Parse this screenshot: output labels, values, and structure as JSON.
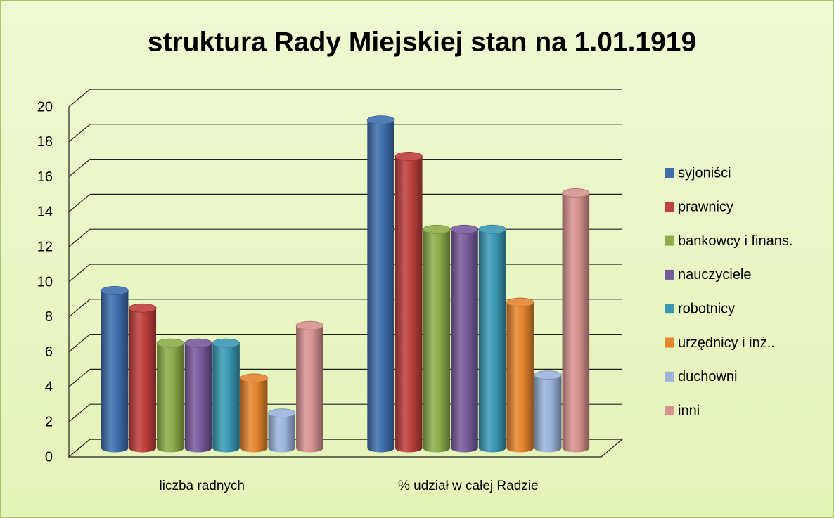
{
  "chart_data": {
    "type": "bar3d",
    "title": "struktura Rady Miejskiej stan na 1.01.1919",
    "categories": [
      "liczba radnych",
      "% udział w całej Radzie"
    ],
    "series": [
      {
        "name": "syjoniści",
        "color": "#3e6eae",
        "values": [
          9,
          18.75
        ]
      },
      {
        "name": "prawnicy",
        "color": "#be3f3b",
        "values": [
          8,
          16.67
        ]
      },
      {
        "name": "bankowcy i finans.",
        "color": "#8cad4a",
        "values": [
          6,
          12.5
        ]
      },
      {
        "name": "nauczyciele",
        "color": "#775a9c",
        "values": [
          6,
          12.5
        ]
      },
      {
        "name": "robotnicy",
        "color": "#3a98b4",
        "values": [
          6,
          12.5
        ]
      },
      {
        "name": "urzędnicy i inż..",
        "color": "#e5852e",
        "values": [
          4,
          8.33
        ]
      },
      {
        "name": "duchowni",
        "color": "#9bb4dc",
        "values": [
          2,
          4.17
        ]
      },
      {
        "name": "inni",
        "color": "#d6928f",
        "values": [
          7,
          14.58
        ]
      }
    ],
    "ylim": [
      0,
      20
    ],
    "yticks": [
      0,
      2,
      4,
      6,
      8,
      10,
      12,
      14,
      16,
      18,
      20
    ],
    "grid": true,
    "legend": "right"
  }
}
